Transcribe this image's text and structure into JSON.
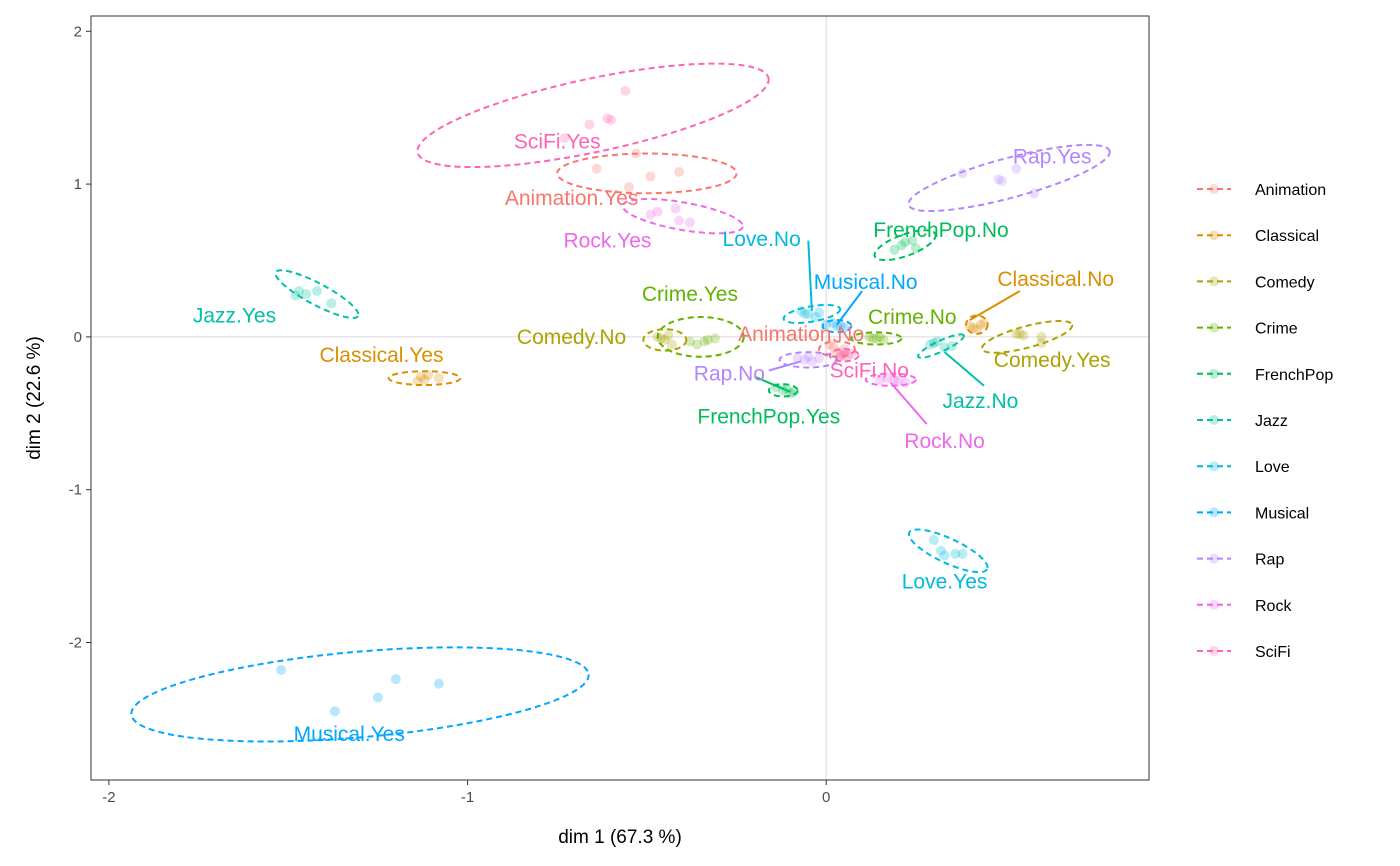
{
  "chart_data": {
    "type": "scatter",
    "xlabel": "dim 1 (67.3 %)",
    "ylabel": "dim 2 (22.6 %)",
    "xlim": [
      -2.05,
      0.9
    ],
    "ylim": [
      -2.9,
      2.1
    ],
    "xticks": [
      {
        "value": -2,
        "label": "-2"
      },
      {
        "value": -1,
        "label": "-1"
      },
      {
        "value": 0,
        "label": "0"
      }
    ],
    "yticks": [
      {
        "value": 2,
        "label": "2"
      },
      {
        "value": 1,
        "label": "1"
      },
      {
        "value": 0,
        "label": "0"
      },
      {
        "value": -1,
        "label": "-1"
      },
      {
        "value": -2,
        "label": "-2"
      }
    ],
    "reference_lines": {
      "x": 0,
      "y": 0
    },
    "grid": false,
    "legend_position": "right",
    "series": [
      {
        "name": "Animation",
        "color": "#F8766D",
        "points": [
          [
            -0.53,
            1.2
          ],
          [
            -0.49,
            1.05
          ],
          [
            -0.41,
            1.08
          ],
          [
            -0.55,
            0.98
          ],
          [
            -0.64,
            1.1
          ],
          [
            0.01,
            -0.05
          ],
          [
            0.03,
            -0.1
          ],
          [
            0.05,
            -0.08
          ],
          [
            0.04,
            -0.12
          ],
          [
            0.02,
            -0.07
          ]
        ],
        "ellipses": [
          {
            "cx": -0.5,
            "cy": 1.07,
            "rx": 0.25,
            "ry": 0.13,
            "angle": 0
          },
          {
            "cx": 0.03,
            "cy": -0.08,
            "rx": 0.05,
            "ry": 0.05,
            "angle": 0
          }
        ],
        "labels": [
          {
            "text": "Animation.Yes",
            "x": -0.71,
            "y": 0.91
          },
          {
            "text": "Animation.No",
            "x": -0.07,
            "y": 0.02
          }
        ],
        "leaders": []
      },
      {
        "name": "Classical",
        "color": "#DB8E00",
        "points": [
          [
            -1.13,
            -0.26
          ],
          [
            -1.12,
            -0.28
          ],
          [
            -1.08,
            -0.27
          ],
          [
            -1.11,
            -0.25
          ],
          [
            -1.14,
            -0.29
          ],
          [
            0.41,
            0.06
          ],
          [
            0.43,
            0.08
          ],
          [
            0.42,
            0.05
          ],
          [
            0.4,
            0.07
          ],
          [
            0.44,
            0.09
          ]
        ],
        "ellipses": [
          {
            "cx": -1.12,
            "cy": -0.27,
            "rx": 0.1,
            "ry": 0.045,
            "angle": 0
          },
          {
            "cx": 0.42,
            "cy": 0.08,
            "rx": 0.03,
            "ry": 0.06,
            "angle": 0
          }
        ],
        "labels": [
          {
            "text": "Classical.Yes",
            "x": -1.24,
            "y": -0.12
          },
          {
            "text": "Classical.No",
            "x": 0.64,
            "y": 0.38
          }
        ],
        "leaders": [
          {
            "x1": 0.54,
            "y1": 0.3,
            "x2": 0.4,
            "y2": 0.11
          }
        ]
      },
      {
        "name": "Comedy",
        "color": "#AEA200",
        "points": [
          [
            -0.47,
            0.0
          ],
          [
            -0.45,
            -0.02
          ],
          [
            -0.43,
            -0.05
          ],
          [
            -0.44,
            0.01
          ],
          [
            -0.46,
            -0.01
          ],
          [
            0.53,
            0.02
          ],
          [
            0.55,
            0.01
          ],
          [
            0.6,
            0.0
          ],
          [
            0.6,
            -0.04
          ],
          [
            0.54,
            0.02
          ]
        ],
        "ellipses": [
          {
            "cx": -0.45,
            "cy": -0.02,
            "rx": 0.06,
            "ry": 0.07,
            "angle": 0
          },
          {
            "cx": 0.56,
            "cy": 0.0,
            "rx": 0.13,
            "ry": 0.07,
            "angle": -15
          }
        ],
        "labels": [
          {
            "text": "Comedy.No",
            "x": -0.71,
            "y": 0.0
          },
          {
            "text": "Comedy.Yes",
            "x": 0.63,
            "y": -0.15
          }
        ],
        "leaders": []
      },
      {
        "name": "Crime",
        "color": "#64B200",
        "points": [
          [
            -0.34,
            -0.03
          ],
          [
            -0.31,
            -0.01
          ],
          [
            -0.36,
            -0.05
          ],
          [
            -0.38,
            -0.03
          ],
          [
            -0.33,
            -0.02
          ],
          [
            0.13,
            -0.01
          ],
          [
            0.15,
            0.0
          ],
          [
            0.16,
            -0.02
          ],
          [
            0.14,
            -0.01
          ],
          [
            0.12,
            0.0
          ]
        ],
        "ellipses": [
          {
            "cx": -0.35,
            "cy": 0.0,
            "rx": 0.12,
            "ry": 0.13,
            "angle": 0
          },
          {
            "cx": 0.14,
            "cy": -0.01,
            "rx": 0.07,
            "ry": 0.04,
            "angle": 0
          }
        ],
        "labels": [
          {
            "text": "Crime.Yes",
            "x": -0.38,
            "y": 0.28
          },
          {
            "text": "Crime.No",
            "x": 0.24,
            "y": 0.13
          }
        ],
        "leaders": []
      },
      {
        "name": "FrenchPop",
        "color": "#00BD5C",
        "points": [
          [
            0.19,
            0.57
          ],
          [
            0.21,
            0.6
          ],
          [
            0.24,
            0.63
          ],
          [
            0.25,
            0.58
          ],
          [
            0.22,
            0.62
          ],
          [
            -0.14,
            -0.33
          ],
          [
            -0.12,
            -0.35
          ],
          [
            -0.1,
            -0.37
          ],
          [
            -0.09,
            -0.36
          ],
          [
            -0.11,
            -0.34
          ]
        ],
        "ellipses": [
          {
            "cx": 0.22,
            "cy": 0.6,
            "rx": 0.09,
            "ry": 0.07,
            "angle": -20
          },
          {
            "cx": -0.12,
            "cy": -0.35,
            "rx": 0.04,
            "ry": 0.04,
            "angle": 0
          }
        ],
        "labels": [
          {
            "text": "FrenchPop.No",
            "x": 0.32,
            "y": 0.7
          },
          {
            "text": "FrenchPop.Yes",
            "x": -0.16,
            "y": -0.52
          }
        ],
        "leaders": [
          {
            "x1": -0.2,
            "y1": -0.26,
            "x2": -0.1,
            "y2": -0.36
          }
        ]
      },
      {
        "name": "Jazz",
        "color": "#00C1A7",
        "points": [
          [
            -1.47,
            0.3
          ],
          [
            -1.45,
            0.28
          ],
          [
            -1.42,
            0.3
          ],
          [
            -1.38,
            0.22
          ],
          [
            -1.48,
            0.27
          ],
          [
            0.3,
            -0.04
          ],
          [
            0.33,
            -0.07
          ],
          [
            0.29,
            -0.05
          ],
          [
            0.35,
            -0.06
          ],
          [
            0.31,
            -0.03
          ]
        ],
        "ellipses": [
          {
            "cx": -1.42,
            "cy": 0.28,
            "rx": 0.13,
            "ry": 0.07,
            "angle": 28
          },
          {
            "cx": 0.32,
            "cy": -0.06,
            "rx": 0.07,
            "ry": 0.035,
            "angle": -25
          }
        ],
        "labels": [
          {
            "text": "Jazz.Yes",
            "x": -1.65,
            "y": 0.14
          },
          {
            "text": "Jazz.No",
            "x": 0.43,
            "y": -0.42
          }
        ],
        "leaders": [
          {
            "x1": 0.44,
            "y1": -0.32,
            "x2": 0.33,
            "y2": -0.1
          }
        ]
      },
      {
        "name": "Love",
        "color": "#00BADE",
        "points": [
          [
            0.3,
            -1.33
          ],
          [
            0.33,
            -1.43
          ],
          [
            0.36,
            -1.42
          ],
          [
            0.32,
            -1.4
          ],
          [
            0.38,
            -1.42
          ],
          [
            -0.07,
            0.17
          ],
          [
            -0.05,
            0.15
          ],
          [
            -0.03,
            0.13
          ],
          [
            -0.02,
            0.16
          ],
          [
            -0.06,
            0.15
          ]
        ],
        "ellipses": [
          {
            "cx": 0.34,
            "cy": -1.4,
            "rx": 0.12,
            "ry": 0.08,
            "angle": 25
          },
          {
            "cx": -0.04,
            "cy": 0.15,
            "rx": 0.08,
            "ry": 0.05,
            "angle": -10
          }
        ],
        "labels": [
          {
            "text": "Love.Yes",
            "x": 0.33,
            "y": -1.6
          },
          {
            "text": "Love.No",
            "x": -0.18,
            "y": 0.64
          }
        ],
        "leaders": [
          {
            "x1": -0.05,
            "y1": 0.63,
            "x2": -0.04,
            "y2": 0.17
          }
        ]
      },
      {
        "name": "Musical",
        "color": "#00A6FF",
        "points": [
          [
            -1.52,
            -2.18
          ],
          [
            -1.37,
            -2.45
          ],
          [
            -1.25,
            -2.36
          ],
          [
            -1.2,
            -2.24
          ],
          [
            -1.08,
            -2.27
          ],
          [
            0.0,
            0.08
          ],
          [
            0.03,
            0.07
          ],
          [
            0.05,
            0.06
          ],
          [
            0.02,
            0.09
          ],
          [
            0.04,
            0.07
          ]
        ],
        "ellipses": [
          {
            "cx": -1.3,
            "cy": -2.34,
            "rx": 0.64,
            "ry": 0.28,
            "angle": -5
          },
          {
            "cx": 0.03,
            "cy": 0.07,
            "rx": 0.04,
            "ry": 0.04,
            "angle": 0
          }
        ],
        "labels": [
          {
            "text": "Musical.Yes",
            "x": -1.33,
            "y": -2.6
          },
          {
            "text": "Musical.No",
            "x": 0.11,
            "y": 0.36
          }
        ],
        "leaders": [
          {
            "x1": 0.1,
            "y1": 0.3,
            "x2": 0.03,
            "y2": 0.08
          }
        ]
      },
      {
        "name": "Rap",
        "color": "#B385FF",
        "points": [
          [
            0.38,
            1.07
          ],
          [
            0.48,
            1.03
          ],
          [
            0.53,
            1.1
          ],
          [
            0.58,
            0.94
          ],
          [
            0.49,
            1.02
          ],
          [
            -0.08,
            -0.14
          ],
          [
            -0.06,
            -0.15
          ],
          [
            -0.04,
            -0.16
          ],
          [
            -0.02,
            -0.14
          ],
          [
            -0.05,
            -0.13
          ]
        ],
        "ellipses": [
          {
            "cx": 0.51,
            "cy": 1.04,
            "rx": 0.29,
            "ry": 0.13,
            "angle": -15
          },
          {
            "cx": -0.05,
            "cy": -0.15,
            "rx": 0.08,
            "ry": 0.05,
            "angle": 0
          }
        ],
        "labels": [
          {
            "text": "Rap.Yes",
            "x": 0.63,
            "y": 1.18
          },
          {
            "text": "Rap.No",
            "x": -0.27,
            "y": -0.24
          }
        ],
        "leaders": [
          {
            "x1": -0.16,
            "y1": -0.22,
            "x2": -0.07,
            "y2": -0.16
          }
        ]
      },
      {
        "name": "Rock",
        "color": "#EF67EB",
        "points": [
          [
            -0.49,
            0.8
          ],
          [
            -0.42,
            0.84
          ],
          [
            -0.41,
            0.76
          ],
          [
            -0.38,
            0.75
          ],
          [
            -0.47,
            0.82
          ],
          [
            0.15,
            -0.28
          ],
          [
            0.17,
            -0.27
          ],
          [
            0.2,
            -0.29
          ],
          [
            0.22,
            -0.3
          ],
          [
            0.19,
            -0.28
          ]
        ],
        "ellipses": [
          {
            "cx": -0.4,
            "cy": 0.79,
            "rx": 0.17,
            "ry": 0.09,
            "angle": 10
          },
          {
            "cx": 0.18,
            "cy": -0.28,
            "rx": 0.07,
            "ry": 0.04,
            "angle": 0
          }
        ],
        "labels": [
          {
            "text": "Rock.Yes",
            "x": -0.61,
            "y": 0.63
          },
          {
            "text": "Rock.No",
            "x": 0.33,
            "y": -0.68
          }
        ],
        "leaders": [
          {
            "x1": 0.28,
            "y1": -0.57,
            "x2": 0.18,
            "y2": -0.3
          }
        ]
      },
      {
        "name": "SciFi",
        "color": "#FF63B6",
        "points": [
          [
            -0.73,
            1.3
          ],
          [
            -0.66,
            1.39
          ],
          [
            -0.6,
            1.42
          ],
          [
            -0.56,
            1.61
          ],
          [
            -0.61,
            1.43
          ],
          [
            0.05,
            -0.1
          ],
          [
            0.06,
            -0.12
          ],
          [
            0.04,
            -0.13
          ],
          [
            0.07,
            -0.11
          ],
          [
            0.05,
            -0.12
          ]
        ],
        "ellipses": [
          {
            "cx": -0.65,
            "cy": 1.45,
            "rx": 0.5,
            "ry": 0.24,
            "angle": -12
          },
          {
            "cx": 0.05,
            "cy": -0.12,
            "rx": 0.04,
            "ry": 0.04,
            "angle": 0
          }
        ],
        "labels": [
          {
            "text": "SciFi.Yes",
            "x": -0.75,
            "y": 1.28
          },
          {
            "text": "SciFi.No",
            "x": 0.12,
            "y": -0.22
          }
        ],
        "leaders": []
      }
    ]
  }
}
